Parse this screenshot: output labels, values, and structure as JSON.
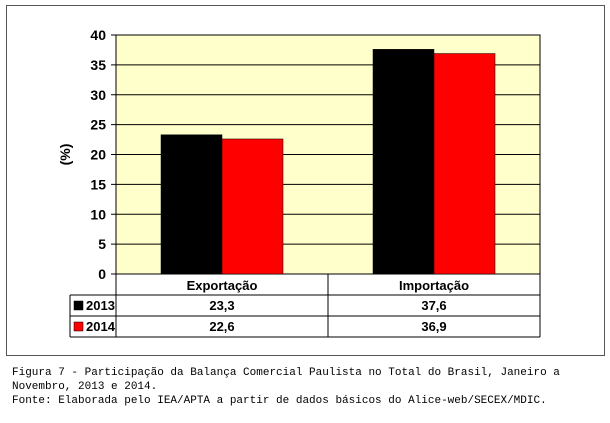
{
  "chart_data": {
    "type": "bar",
    "categories": [
      "Exportação",
      "Importação"
    ],
    "series": [
      {
        "name": "2013",
        "values": [
          23.3,
          37.6
        ],
        "labels": [
          "23,3",
          "37,6"
        ],
        "color": "#000000"
      },
      {
        "name": "2014",
        "values": [
          22.6,
          36.9
        ],
        "labels": [
          "22,6",
          "36,9"
        ],
        "color": "#ff0000"
      }
    ],
    "ylabel": "(%)",
    "ylim": [
      0,
      40
    ],
    "yticks": [
      0,
      5,
      10,
      15,
      20,
      25,
      30,
      35,
      40
    ],
    "grid": true,
    "legend": "data-table",
    "plot_background": "#ffffcc"
  },
  "caption": {
    "line1": "Figura 7 - Participação da Balança Comercial Paulista no Total do Brasil, Janeiro a Novembro, 2013 e 2014.",
    "line2": "Fonte: Elaborada pelo IEA/APTA a partir de dados básicos do Alice-web/SECEX/MDIC."
  }
}
